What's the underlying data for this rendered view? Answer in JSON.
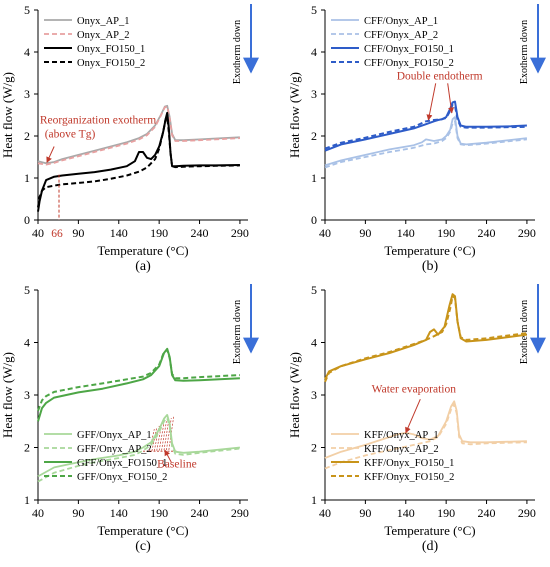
{
  "chart_data": [
    {
      "type": "line",
      "panel_label": "(a)",
      "xlabel": "Temperature (°C)",
      "ylabel": "Heat flow (W/g)",
      "xlim": [
        40,
        300
      ],
      "ylim": [
        0,
        5
      ],
      "xticks": [
        40,
        90,
        140,
        190,
        240,
        290
      ],
      "yticks": [
        0,
        1,
        2,
        3,
        4,
        5
      ],
      "exotherm_label": "Exotherm down",
      "legend_position": "top-left",
      "series": [
        {
          "name": "Onyx_AP_1",
          "color": "#a9a9a9",
          "dashed": false,
          "x": [
            40,
            50,
            60,
            70,
            90,
            110,
            130,
            150,
            165,
            175,
            185,
            192,
            197,
            200,
            203,
            206,
            210,
            220,
            240,
            260,
            290
          ],
          "y": [
            1.4,
            1.35,
            1.38,
            1.45,
            1.55,
            1.65,
            1.75,
            1.85,
            1.95,
            2.05,
            2.25,
            2.5,
            2.7,
            2.72,
            2.45,
            2.05,
            1.9,
            1.9,
            1.92,
            1.94,
            1.97
          ]
        },
        {
          "name": "Onyx_AP_2",
          "color": "#e8a0a0",
          "dashed": true,
          "x": [
            40,
            50,
            60,
            70,
            90,
            110,
            130,
            150,
            165,
            175,
            185,
            192,
            197,
            200,
            203,
            206,
            210,
            220,
            240,
            260,
            290
          ],
          "y": [
            1.35,
            1.32,
            1.36,
            1.42,
            1.52,
            1.62,
            1.72,
            1.82,
            1.92,
            2.02,
            2.22,
            2.48,
            2.68,
            2.7,
            2.42,
            2.02,
            1.88,
            1.88,
            1.9,
            1.92,
            1.95
          ]
        },
        {
          "name": "Onyx_FO150_1",
          "color": "#000000",
          "dashed": false,
          "x": [
            40,
            42,
            45,
            50,
            60,
            70,
            90,
            110,
            130,
            150,
            160,
            165,
            170,
            175,
            180,
            185,
            190,
            195,
            198,
            200,
            202,
            204,
            206,
            210,
            220,
            240,
            260,
            290
          ],
          "y": [
            0.2,
            0.45,
            0.7,
            0.95,
            1.03,
            1.06,
            1.1,
            1.14,
            1.2,
            1.28,
            1.4,
            1.62,
            1.62,
            1.48,
            1.45,
            1.55,
            1.75,
            2.1,
            2.4,
            2.55,
            2.2,
            1.6,
            1.28,
            1.28,
            1.29,
            1.3,
            1.3,
            1.31
          ]
        },
        {
          "name": "Onyx_FO150_2",
          "color": "#000000",
          "dashed": true,
          "x": [
            40,
            42,
            45,
            50,
            60,
            70,
            90,
            110,
            130,
            150,
            165,
            175,
            185,
            190,
            195,
            198,
            200,
            202,
            204,
            206,
            210,
            220,
            240,
            260,
            290
          ],
          "y": [
            0.3,
            0.55,
            0.7,
            0.78,
            0.82,
            0.85,
            0.88,
            0.92,
            0.98,
            1.06,
            1.15,
            1.25,
            1.45,
            1.7,
            2.1,
            2.4,
            2.45,
            2.1,
            1.6,
            1.28,
            1.26,
            1.27,
            1.28,
            1.29,
            1.3
          ]
        }
      ],
      "annotations": [
        {
          "text_lines": [
            "Reorganization exotherm",
            "(above Tg)"
          ],
          "arrow_to": [
            51,
            1.37
          ],
          "color": "#c0392b"
        },
        {
          "text": "66",
          "marker_x": 66,
          "color": "#c0392b"
        }
      ]
    },
    {
      "type": "line",
      "panel_label": "(b)",
      "xlabel": "Temperature (°C)",
      "ylabel": "Heat flow (W/g)",
      "xlim": [
        40,
        300
      ],
      "ylim": [
        0,
        5
      ],
      "xticks": [
        40,
        90,
        140,
        190,
        240,
        290
      ],
      "yticks": [
        0,
        1,
        2,
        3,
        4,
        5
      ],
      "exotherm_label": "Exotherm down",
      "legend_position": "top-left",
      "series": [
        {
          "name": "CFF/Onyx_AP_1",
          "color": "#a9c1e6",
          "dashed": false,
          "x": [
            40,
            60,
            90,
            120,
            150,
            160,
            165,
            175,
            185,
            190,
            195,
            198,
            201,
            204,
            208,
            215,
            240,
            290
          ],
          "y": [
            1.3,
            1.42,
            1.55,
            1.68,
            1.78,
            1.85,
            1.92,
            1.88,
            1.92,
            2.0,
            2.15,
            2.4,
            2.45,
            2.0,
            1.82,
            1.8,
            1.84,
            1.95
          ]
        },
        {
          "name": "CFF/Onyx_AP_2",
          "color": "#a9c1e6",
          "dashed": true,
          "x": [
            40,
            60,
            90,
            120,
            150,
            165,
            175,
            185,
            190,
            195,
            198,
            201,
            204,
            208,
            215,
            240,
            290
          ],
          "y": [
            1.25,
            1.38,
            1.5,
            1.62,
            1.72,
            1.8,
            1.82,
            1.88,
            1.95,
            2.1,
            2.3,
            2.35,
            1.95,
            1.8,
            1.78,
            1.82,
            1.92
          ]
        },
        {
          "name": "CFF/Onyx_FO150_1",
          "color": "#2e5cc8",
          "dashed": false,
          "x": [
            40,
            60,
            90,
            120,
            150,
            165,
            175,
            180,
            185,
            190,
            195,
            198,
            201,
            204,
            208,
            215,
            240,
            270,
            290
          ],
          "y": [
            1.65,
            1.8,
            1.92,
            2.05,
            2.18,
            2.28,
            2.35,
            2.38,
            2.4,
            2.45,
            2.65,
            2.8,
            2.82,
            2.45,
            2.25,
            2.22,
            2.22,
            2.23,
            2.25
          ]
        },
        {
          "name": "CFF/Onyx_FO150_2",
          "color": "#2e5cc8",
          "dashed": true,
          "x": [
            40,
            60,
            90,
            120,
            150,
            165,
            175,
            185,
            190,
            195,
            198,
            201,
            204,
            208,
            215,
            240,
            290
          ],
          "y": [
            1.7,
            1.84,
            1.96,
            2.1,
            2.22,
            2.35,
            2.38,
            2.4,
            2.43,
            2.6,
            2.75,
            2.72,
            2.4,
            2.22,
            2.2,
            2.2,
            2.22
          ]
        }
      ],
      "annotations": [
        {
          "text": "Double endotherm",
          "arrows_to": [
            [
              168,
              2.38
            ],
            [
              197,
              2.55
            ]
          ],
          "color": "#c0392b"
        }
      ]
    },
    {
      "type": "line",
      "panel_label": "(c)",
      "xlabel": "Temperature (°C)",
      "ylabel": "Heat flow (W/g)",
      "xlim": [
        40,
        300
      ],
      "ylim": [
        1,
        5
      ],
      "xticks": [
        40,
        90,
        140,
        190,
        240,
        290
      ],
      "yticks": [
        1,
        2,
        3,
        4,
        5
      ],
      "exotherm_label": "Exotherm down",
      "legend_position": "bottom-left",
      "series": [
        {
          "name": "GFF/Onyx_AP_1",
          "color": "#a8d89a",
          "dashed": false,
          "x": [
            40,
            60,
            90,
            110,
            140,
            160,
            170,
            180,
            190,
            196,
            200,
            203,
            206,
            210,
            220,
            240,
            290
          ],
          "y": [
            1.45,
            1.62,
            1.72,
            1.78,
            1.85,
            1.92,
            2.0,
            2.1,
            2.35,
            2.55,
            2.62,
            2.45,
            2.08,
            1.92,
            1.9,
            1.92,
            2.0
          ]
        },
        {
          "name": "GFF/Onyx_AP_2",
          "color": "#a8d89a",
          "dashed": true,
          "x": [
            40,
            60,
            90,
            110,
            140,
            160,
            170,
            180,
            190,
            196,
            200,
            203,
            206,
            210,
            220,
            240,
            290
          ],
          "y": [
            1.35,
            1.52,
            1.65,
            1.72,
            1.8,
            1.86,
            1.94,
            2.05,
            2.3,
            2.5,
            2.56,
            2.4,
            2.02,
            1.88,
            1.86,
            1.9,
            1.98
          ]
        },
        {
          "name": "GFF/Onyx_FO150_1",
          "color": "#4da646",
          "dashed": false,
          "x": [
            40,
            45,
            50,
            60,
            90,
            120,
            150,
            170,
            180,
            190,
            196,
            200,
            203,
            206,
            210,
            220,
            240,
            290
          ],
          "y": [
            2.5,
            2.75,
            2.85,
            2.95,
            3.05,
            3.12,
            3.22,
            3.3,
            3.38,
            3.55,
            3.8,
            3.88,
            3.72,
            3.38,
            3.28,
            3.27,
            3.28,
            3.32
          ]
        },
        {
          "name": "GFF/Onyx_FO150_2",
          "color": "#4da646",
          "dashed": true,
          "x": [
            40,
            45,
            50,
            60,
            90,
            120,
            150,
            170,
            180,
            190,
            196,
            200,
            203,
            206,
            210,
            220,
            240,
            290
          ],
          "y": [
            2.7,
            2.9,
            2.98,
            3.06,
            3.15,
            3.22,
            3.3,
            3.35,
            3.42,
            3.58,
            3.82,
            3.86,
            3.7,
            3.4,
            3.32,
            3.32,
            3.34,
            3.38
          ]
        }
      ],
      "annotations": [
        {
          "text": "Baseline",
          "arrow_to": [
            197,
            1.95
          ],
          "color": "#c0392b"
        }
      ]
    },
    {
      "type": "line",
      "panel_label": "(d)",
      "xlabel": "Temperature (°C)",
      "ylabel": "Heat flow (W/g)",
      "xlim": [
        40,
        300
      ],
      "ylim": [
        1,
        5
      ],
      "xticks": [
        40,
        90,
        140,
        190,
        240,
        290
      ],
      "yticks": [
        1,
        2,
        3,
        4,
        5
      ],
      "exotherm_label": "Exotherm down",
      "legend_position": "bottom-left",
      "series": [
        {
          "name": "KFF/Onyx_AP_1",
          "color": "#f2cfa6",
          "dashed": false,
          "x": [
            40,
            60,
            90,
            110,
            130,
            140,
            150,
            160,
            170,
            180,
            190,
            196,
            200,
            203,
            206,
            210,
            220,
            240,
            290
          ],
          "y": [
            1.8,
            1.92,
            2.05,
            2.15,
            2.25,
            2.28,
            2.25,
            2.18,
            2.15,
            2.22,
            2.5,
            2.78,
            2.88,
            2.7,
            2.25,
            2.12,
            2.1,
            2.1,
            2.12
          ]
        },
        {
          "name": "KFF/Onyx_AP_2",
          "color": "#f2cfa6",
          "dashed": true,
          "x": [
            40,
            60,
            90,
            120,
            150,
            170,
            180,
            190,
            196,
            200,
            203,
            206,
            210,
            220,
            240,
            290
          ],
          "y": [
            1.6,
            1.72,
            1.85,
            1.95,
            2.05,
            2.12,
            2.2,
            2.45,
            2.72,
            2.82,
            2.65,
            2.2,
            2.08,
            2.06,
            2.08,
            2.1
          ]
        },
        {
          "name": "KFF/Onyx_FO150_1",
          "color": "#c8941a",
          "dashed": false,
          "x": [
            40,
            45,
            60,
            90,
            120,
            150,
            165,
            170,
            175,
            180,
            188,
            194,
            198,
            201,
            204,
            208,
            215,
            240,
            290
          ],
          "y": [
            3.3,
            3.45,
            3.55,
            3.68,
            3.8,
            3.95,
            4.05,
            4.2,
            4.25,
            4.15,
            4.3,
            4.7,
            4.92,
            4.88,
            4.4,
            4.08,
            4.02,
            4.05,
            4.15
          ]
        },
        {
          "name": "KFF/Onyx_FO150_2",
          "color": "#c8941a",
          "dashed": true,
          "x": [
            40,
            45,
            60,
            90,
            120,
            150,
            165,
            175,
            185,
            190,
            195,
            198,
            201,
            204,
            208,
            215,
            240,
            290
          ],
          "y": [
            3.25,
            3.42,
            3.55,
            3.7,
            3.82,
            3.97,
            4.05,
            4.12,
            4.2,
            4.35,
            4.65,
            4.88,
            4.85,
            4.4,
            4.1,
            4.05,
            4.08,
            4.18
          ]
        }
      ],
      "annotations": [
        {
          "text": "Water evaporation",
          "arrow_to": [
            140,
            2.28
          ],
          "color": "#c0392b"
        }
      ]
    }
  ]
}
